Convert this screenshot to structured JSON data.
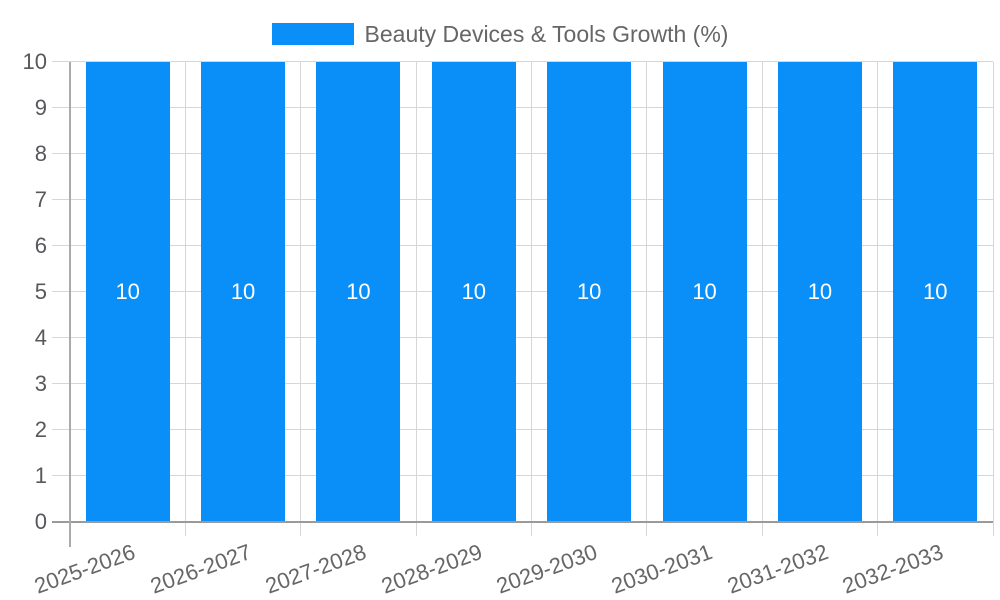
{
  "legend": {
    "label": "Beauty Devices & Tools Growth (%)"
  },
  "chart_data": {
    "type": "bar",
    "title": "",
    "xlabel": "",
    "ylabel": "",
    "categories": [
      "2025-2026",
      "2026-2027",
      "2027-2028",
      "2028-2029",
      "2029-2030",
      "2030-2031",
      "2031-2032",
      "2032-2033"
    ],
    "series": [
      {
        "name": "Beauty Devices & Tools Growth (%)",
        "values": [
          10,
          10,
          10,
          10,
          10,
          10,
          10,
          10
        ]
      }
    ],
    "bar_value_labels": [
      "10",
      "10",
      "10",
      "10",
      "10",
      "10",
      "10",
      "10"
    ],
    "ylim": [
      0,
      10
    ],
    "yticks": [
      0,
      1,
      2,
      3,
      4,
      5,
      6,
      7,
      8,
      9,
      10
    ],
    "grid": true,
    "legend_position": "top",
    "x_label_rotation_deg": -20,
    "colors": {
      "bar": "#0a8ff9",
      "grid": "#d6d6d6",
      "baseline": "#9a9a9a",
      "y_axis_line": "#ababab",
      "y_label_text": "#58585c",
      "x_label_text": "#666666",
      "legend_text": "#666666",
      "bar_label_text": "#ffffff"
    }
  }
}
